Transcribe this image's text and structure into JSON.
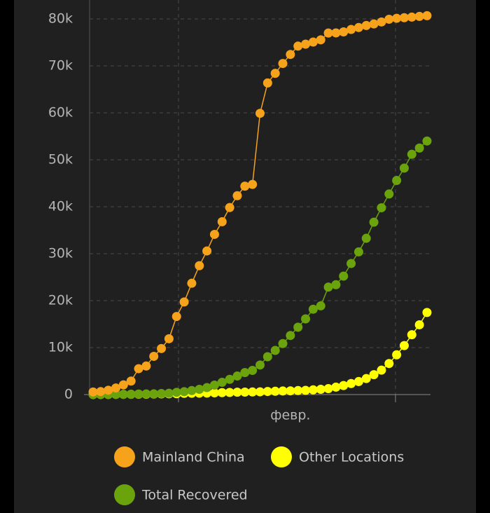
{
  "chart_data": {
    "type": "line",
    "categories": [
      null,
      null,
      null,
      null,
      null,
      null,
      null,
      null,
      null,
      null,
      null,
      null,
      null,
      null,
      null,
      null,
      null,
      null,
      null,
      null,
      null,
      null,
      null,
      null,
      null,
      null,
      "февр.",
      null,
      null,
      null,
      null,
      null,
      null,
      null,
      null,
      null,
      null,
      null,
      null,
      null,
      null,
      null,
      null,
      null,
      null
    ],
    "series": [
      {
        "name": "Mainland China",
        "color": "#f7a21b",
        "values": [
          548,
          643,
          920,
          1406,
          2075,
          2877,
          5509,
          6087,
          8141,
          9802,
          11891,
          16630,
          19716,
          23707,
          27440,
          30587,
          34110,
          36814,
          39829,
          42354,
          44386,
          44759,
          59895,
          66358,
          68413,
          70513,
          72434,
          74211,
          74619,
          75077,
          75550,
          77001,
          77022,
          77241,
          77754,
          78166,
          78600,
          78928,
          79356,
          79932,
          80136,
          80261,
          80386,
          80537,
          80690
        ]
      },
      {
        "name": "Other Locations",
        "color": "#ffff00",
        "values": [
          7,
          11,
          21,
          28,
          43,
          50,
          69,
          73,
          113,
          146,
          159,
          178,
          260,
          280,
          298,
          318,
          361,
          406,
          448,
          499,
          524,
          552,
          585,
          659,
          702,
          757,
          789,
          850,
          892,
          1002,
          1120,
          1263,
          1586,
          1924,
          2350,
          2771,
          3408,
          4239,
          5199,
          6611,
          8471,
          10427,
          12747,
          14858,
          17481
        ]
      },
      {
        "name": "Total Recovered",
        "color": "#6aa30c",
        "values": [
          28,
          30,
          36,
          39,
          52,
          61,
          107,
          126,
          143,
          222,
          284,
          472,
          623,
          852,
          1124,
          1487,
          2011,
          2616,
          3244,
          3946,
          4683,
          5150,
          6295,
          8058,
          9395,
          10865,
          12583,
          14352,
          16121,
          18177,
          18890,
          22886,
          23394,
          25227,
          27905,
          30384,
          33277,
          36711,
          39782,
          42716,
          45602,
          48228,
          51170,
          52500,
          54000
        ]
      }
    ],
    "ylim": [
      0,
      80000
    ],
    "yticks": [
      0,
      {
        "value": 10000,
        "label": "10k"
      },
      {
        "value": 20000,
        "label": "20k"
      },
      {
        "value": 30000,
        "label": "30k"
      },
      {
        "value": 40000,
        "label": "40k"
      },
      {
        "value": 50000,
        "label": "50k"
      },
      {
        "value": 60000,
        "label": "60k"
      },
      {
        "value": 70000,
        "label": "70k"
      },
      {
        "value": 80000,
        "label": "80k"
      }
    ],
    "grid": true
  }
}
